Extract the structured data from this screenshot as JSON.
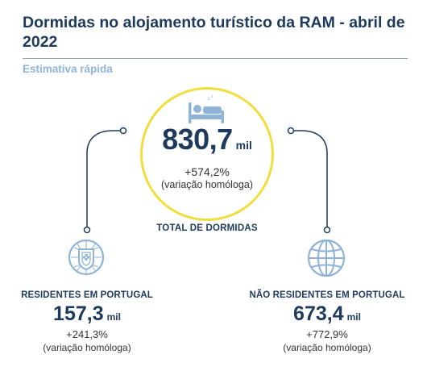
{
  "title": "Dormidas no alojamento turístico da RAM - abril de 2022",
  "subtitle": "Estimativa rápida",
  "total": {
    "value": "830,7",
    "unit": "mil",
    "change": "+574,2%",
    "note": "(variação homóloga)",
    "label": "TOTAL DE DORMIDAS",
    "icon": "bed-icon"
  },
  "residents": {
    "label": "RESIDENTES EM PORTUGAL",
    "value": "157,3",
    "unit": "mil",
    "change": "+241,3%",
    "note": "(variação homóloga)",
    "icon": "portugal-coat-of-arms-icon"
  },
  "non_residents": {
    "label": "NÃO RESIDENTES EM PORTUGAL",
    "value": "673,4",
    "unit": "mil",
    "change": "+772,9%",
    "note": "(variação homóloga)",
    "icon": "globe-icon"
  },
  "colors": {
    "title": "#1d3a5c",
    "subtitle": "#8fb4d8",
    "circle_border": "#f2dd3c",
    "icon_blue": "#8fb4d8",
    "connector": "#1d3a5c"
  }
}
